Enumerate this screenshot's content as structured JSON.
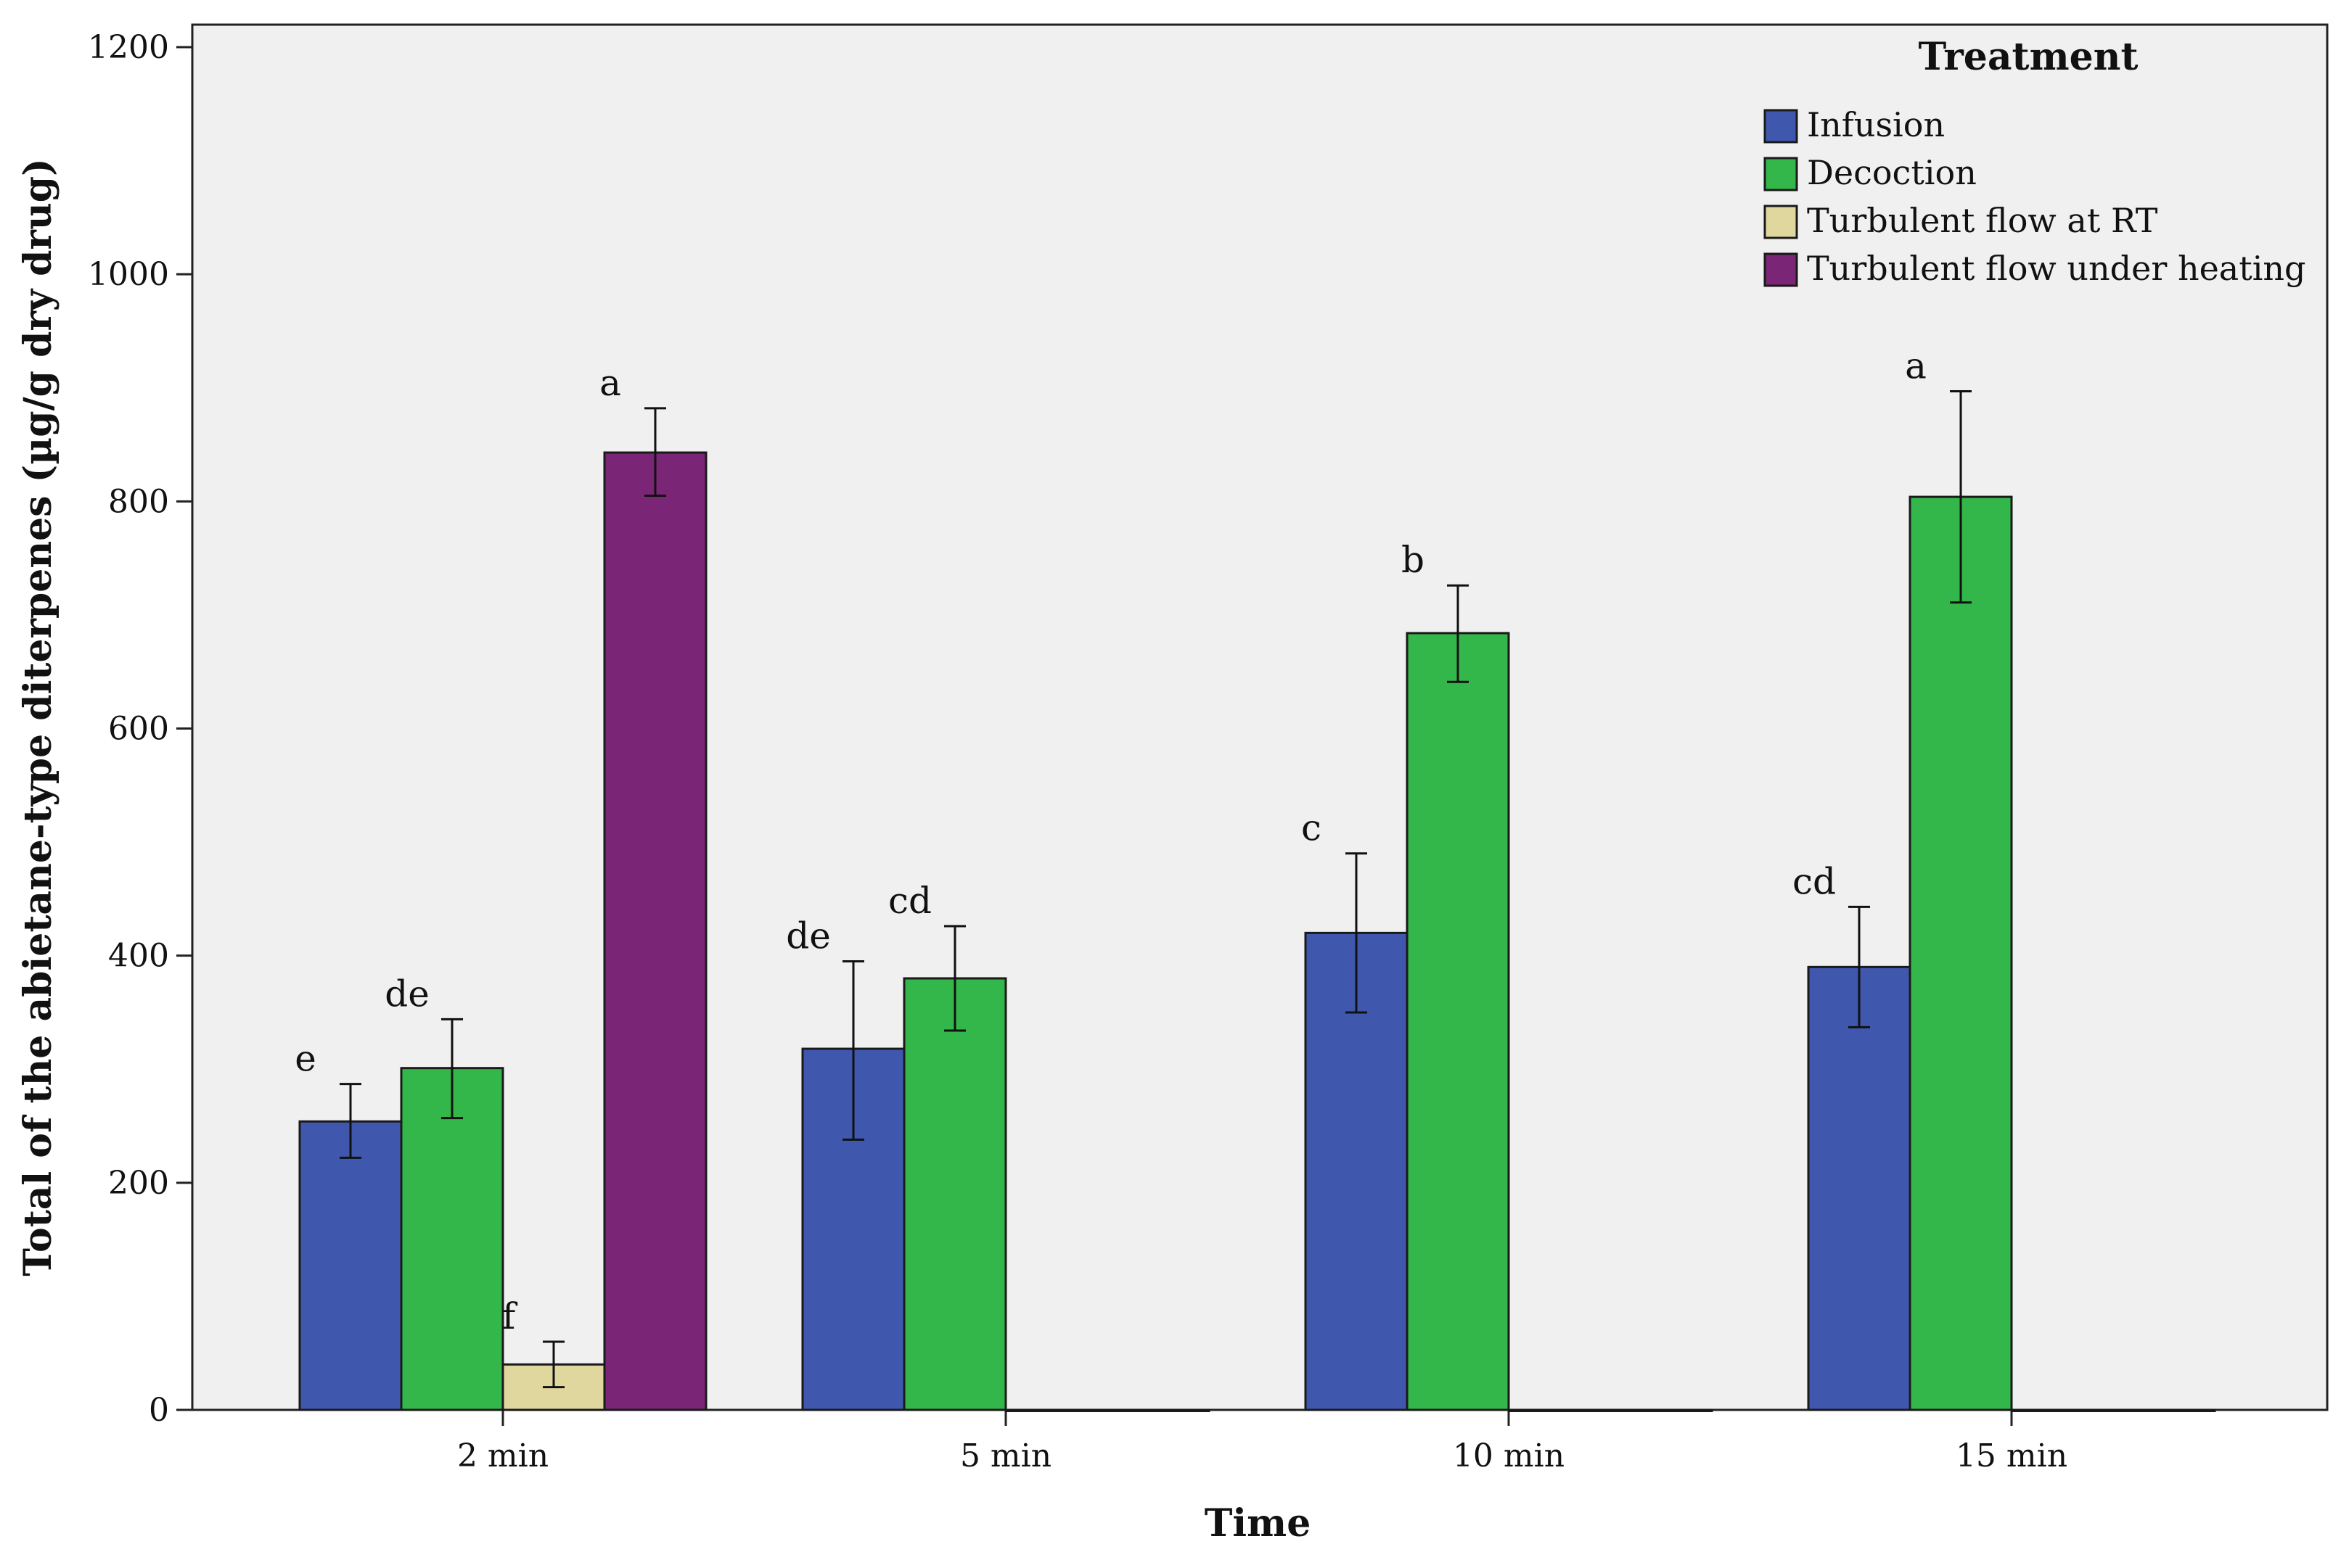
{
  "chart_data": {
    "type": "bar",
    "xlabel": "Time",
    "ylabel": "Total of the abietane-type diterpenes (µg/g dry drug)",
    "ylim": [
      0,
      1200
    ],
    "yticks": [
      0,
      200,
      400,
      600,
      800,
      1000,
      1200
    ],
    "grid": false,
    "categories": [
      "2 min",
      "5 min",
      "10 min",
      "15 min"
    ],
    "legend": {
      "title": "Treatment",
      "position": "top-right"
    },
    "series": [
      {
        "name": "Infusion",
        "color": "#3f58ad",
        "values": [
          254,
          318,
          420,
          390
        ],
        "err_low": [
          222,
          238,
          350,
          337
        ],
        "err_high": [
          287,
          395,
          490,
          443
        ],
        "letters": [
          "e",
          "de",
          "c",
          "cd"
        ]
      },
      {
        "name": "Decoction",
        "color": "#33b74a",
        "values": [
          301,
          380,
          684,
          804
        ],
        "err_low": [
          257,
          334,
          641,
          711
        ],
        "err_high": [
          344,
          426,
          726,
          897
        ],
        "letters": [
          "de",
          "cd",
          "b",
          "a"
        ]
      },
      {
        "name": "Turbulent flow at RT",
        "color": "#e0d79e",
        "values": [
          40,
          0,
          0,
          0
        ],
        "err_low": [
          20,
          null,
          null,
          null
        ],
        "err_high": [
          60,
          null,
          null,
          null
        ],
        "letters": [
          "f",
          "",
          "",
          ""
        ]
      },
      {
        "name": "Turbulent flow under heating",
        "color": "#7a2576",
        "values": [
          843,
          0,
          0,
          0
        ],
        "err_low": [
          805,
          null,
          null,
          null
        ],
        "err_high": [
          882,
          null,
          null,
          null
        ],
        "letters": [
          "a",
          "",
          "",
          ""
        ]
      }
    ]
  }
}
